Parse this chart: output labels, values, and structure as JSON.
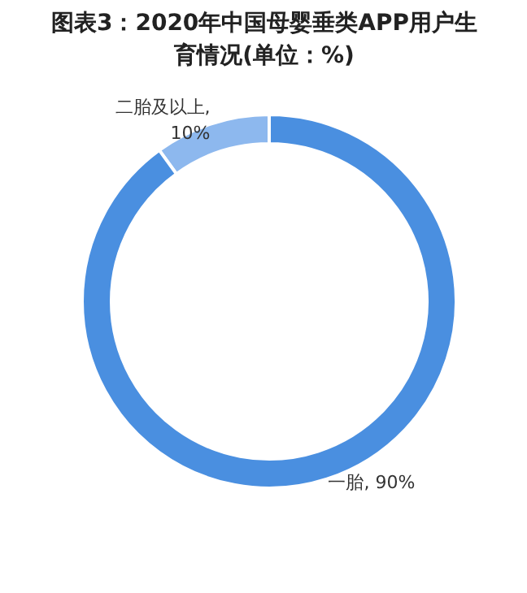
{
  "chart_data": {
    "type": "donut",
    "title": "图表3：2020年中国母婴垂类APP用户生育情况(单位：%)",
    "categories": [
      "二胎及以上",
      "一胎"
    ],
    "values": [
      10,
      90
    ],
    "colors": [
      "#8db8ee",
      "#4a8fe0"
    ],
    "value_labels": [
      ", 10%",
      ", 90%"
    ]
  }
}
